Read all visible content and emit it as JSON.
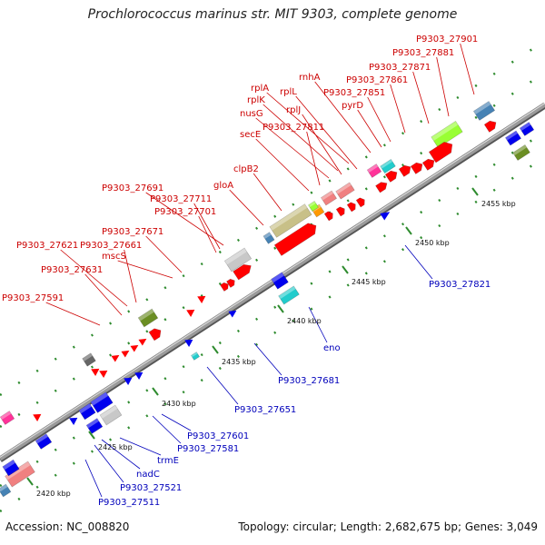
{
  "title": "Prochlorococcus marinus str. MIT 9303, complete genome",
  "footer": {
    "accession": "Accession: NC_008820",
    "summary": "Topology: circular; Length: 2,682,675 bp; Genes: 3,049"
  },
  "colors": {
    "backbone": "#9a9a9a",
    "dotted_track": "#2e8b2e",
    "label_red": "#cc0000",
    "label_blue": "#0000bb",
    "gene_red": "#ff0000",
    "gene_blue": "#0000ee",
    "gene_pink": "#f08080",
    "gene_olive": "#6b8e23",
    "gene_khaki": "#c8c088",
    "gene_lime": "#99ff33",
    "gene_steel": "#4682b4",
    "gene_cyan": "#22cccc",
    "gene_magenta": "#ff3399",
    "gene_gray": "#c8c8c8",
    "gene_darkgray": "#666666",
    "gene_orange": "#ff9900"
  },
  "ticks": [
    {
      "label": "2420 kbp"
    },
    {
      "label": "2425 kbp"
    },
    {
      "label": "2430 kbp"
    },
    {
      "label": "2435 kbp"
    },
    {
      "label": "2440 kbp"
    },
    {
      "label": "2445 kbp"
    },
    {
      "label": "2450 kbp"
    },
    {
      "label": "2455 kbp"
    }
  ],
  "labels_top": [
    {
      "text": "P9303_27901"
    },
    {
      "text": "P9303_27881"
    },
    {
      "text": "P9303_27871"
    },
    {
      "text": "rnhA"
    },
    {
      "text": "P9303_27861"
    },
    {
      "text": "rplA"
    },
    {
      "text": "rplL"
    },
    {
      "text": "P9303_27851"
    },
    {
      "text": "rplK"
    },
    {
      "text": "rplJ"
    },
    {
      "text": "pyrD"
    },
    {
      "text": "nusG"
    },
    {
      "text": "P9303_27811"
    },
    {
      "text": "secE"
    },
    {
      "text": "clpB2"
    },
    {
      "text": "gloA"
    },
    {
      "text": "P9303_27691"
    },
    {
      "text": "P9303_27711"
    },
    {
      "text": "P9303_27701"
    },
    {
      "text": "P9303_27671"
    },
    {
      "text": "P9303_27621"
    },
    {
      "text": "P9303_27661"
    },
    {
      "text": "mscS"
    },
    {
      "text": "P9303_27631"
    },
    {
      "text": "P9303_27591"
    }
  ],
  "labels_bottom": [
    {
      "text": "P9303_27821"
    },
    {
      "text": "eno"
    },
    {
      "text": "P9303_27681"
    },
    {
      "text": "P9303_27651"
    },
    {
      "text": "P9303_27601"
    },
    {
      "text": "P9303_27581"
    },
    {
      "text": "trmE"
    },
    {
      "text": "nadC"
    },
    {
      "text": "P9303_27521"
    },
    {
      "text": "P9303_27511"
    }
  ]
}
